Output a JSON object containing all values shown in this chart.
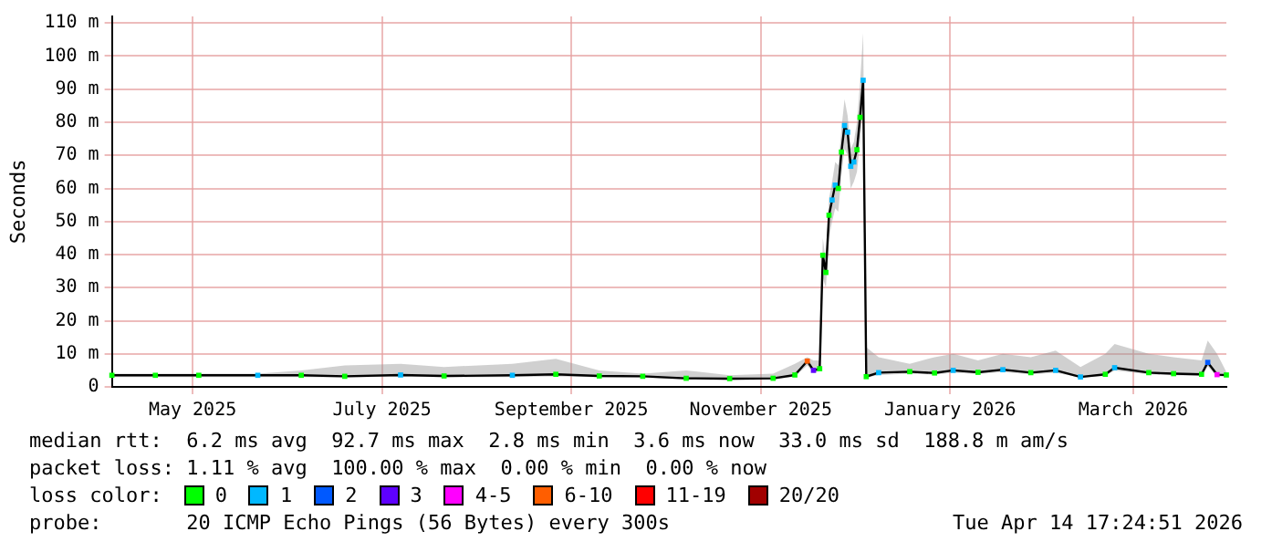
{
  "chart_data": {
    "type": "line",
    "ylabel": "Seconds",
    "x": [
      "2025-04-20",
      "2025-05-04",
      "2025-05-18",
      "2025-06-06",
      "2025-06-20",
      "2025-07-04",
      "2025-07-22",
      "2025-08-05",
      "2025-08-27",
      "2025-09-10",
      "2025-09-24",
      "2025-10-08",
      "2025-10-22",
      "2025-11-05",
      "2025-11-19",
      "2025-11-26",
      "2025-11-30",
      "2025-12-02",
      "2025-12-04",
      "2025-12-05",
      "2025-12-06",
      "2025-12-07",
      "2025-12-08",
      "2025-12-09",
      "2025-12-10",
      "2025-12-11",
      "2025-12-12",
      "2025-12-13",
      "2025-12-14",
      "2025-12-15",
      "2025-12-16",
      "2025-12-17",
      "2025-12-18",
      "2025-12-19",
      "2025-12-23",
      "2026-01-02",
      "2026-01-10",
      "2026-01-16",
      "2026-01-24",
      "2026-02-01",
      "2026-02-10",
      "2026-02-18",
      "2026-02-26",
      "2026-03-06",
      "2026-03-09",
      "2026-03-20",
      "2026-03-28",
      "2026-04-06",
      "2026-04-08",
      "2026-04-11",
      "2026-04-14"
    ],
    "series": [
      {
        "color": "#000000",
        "marker": "none",
        "values": [
          3.5,
          3.5,
          3.5,
          3.5,
          3.5,
          3.2,
          3.6,
          3.3,
          3.5,
          3.8,
          3.3,
          3.2,
          2.6,
          2.5,
          2.6,
          3.6,
          7.8,
          5,
          5.5,
          39.8,
          34.6,
          51.9,
          56.5,
          61,
          60,
          71,
          79,
          77,
          66.7,
          68,
          71.7,
          81.5,
          92.7,
          3.1,
          4.3,
          4.6,
          4.2,
          5,
          4.4,
          5.2,
          4.3,
          5,
          3,
          3.8,
          5.8,
          4.3,
          4,
          3.8,
          7.4,
          3.7,
          3.6
        ],
        "lower": [
          3,
          3,
          3,
          3,
          3,
          2.8,
          3.1,
          2.9,
          3,
          3.2,
          2.9,
          2.8,
          2.2,
          2.1,
          2.2,
          3.1,
          6.5,
          4.2,
          4.8,
          33,
          30,
          45,
          50,
          54,
          53,
          64,
          72,
          70,
          60,
          62,
          65,
          74,
          85,
          2.8,
          3.6,
          4,
          3.7,
          4.3,
          3.9,
          4.5,
          3.8,
          4.3,
          2.8,
          3.3,
          5,
          3.8,
          3.5,
          3.3,
          6.2,
          3.2,
          3.2
        ],
        "upper": [
          4,
          4,
          4,
          4,
          5,
          6.5,
          7,
          6,
          7,
          8.5,
          5,
          4,
          5,
          3.5,
          4,
          7,
          9,
          8,
          8,
          45,
          38,
          57,
          62,
          68,
          67,
          78,
          87,
          82,
          72,
          74,
          80,
          92,
          107,
          12,
          9,
          7,
          9,
          10,
          8,
          10,
          9,
          11,
          6,
          10,
          13,
          10,
          9,
          8,
          14,
          10,
          4.5
        ]
      },
      {
        "name": "0",
        "type": "scatter",
        "color": "#00ff00",
        "values": [
          3.5,
          3.5,
          3.5,
          null,
          3.5,
          3.2,
          null,
          3.3,
          null,
          3.8,
          3.3,
          3.2,
          2.6,
          2.5,
          2.6,
          3.6,
          null,
          null,
          5.5,
          39.8,
          34.6,
          51.9,
          null,
          null,
          60,
          71,
          null,
          null,
          null,
          null,
          71.7,
          81.5,
          null,
          3.1,
          null,
          4.6,
          4.2,
          null,
          4.4,
          null,
          4.3,
          null,
          null,
          3.8,
          null,
          4.3,
          4,
          3.8,
          null,
          null,
          3.6
        ]
      },
      {
        "name": "1",
        "type": "scatter",
        "color": "#00b8ff",
        "values": [
          null,
          null,
          null,
          3.5,
          null,
          null,
          3.6,
          null,
          3.5,
          null,
          null,
          null,
          null,
          null,
          null,
          null,
          null,
          null,
          null,
          null,
          null,
          null,
          56.5,
          61,
          null,
          null,
          79,
          77,
          66.7,
          68,
          null,
          null,
          92.7,
          null,
          4.3,
          null,
          null,
          5,
          null,
          5.2,
          null,
          5,
          3,
          null,
          5.8,
          null,
          null,
          null,
          null,
          null,
          null
        ]
      },
      {
        "name": "2",
        "type": "scatter",
        "color": "#0059ff",
        "values": [
          null,
          null,
          null,
          null,
          null,
          null,
          null,
          null,
          null,
          null,
          null,
          null,
          null,
          null,
          null,
          null,
          null,
          null,
          null,
          null,
          null,
          null,
          null,
          null,
          null,
          null,
          null,
          null,
          null,
          null,
          null,
          null,
          null,
          null,
          null,
          null,
          null,
          null,
          null,
          null,
          null,
          null,
          null,
          null,
          null,
          null,
          null,
          null,
          7.4,
          null,
          null
        ]
      },
      {
        "name": "3",
        "type": "scatter",
        "color": "#5e00ff",
        "values": [
          null,
          null,
          null,
          null,
          null,
          null,
          null,
          null,
          null,
          null,
          null,
          null,
          null,
          null,
          null,
          null,
          null,
          5,
          null,
          null,
          null,
          null,
          null,
          null,
          null,
          null,
          null,
          null,
          null,
          null,
          null,
          null,
          null,
          null,
          null,
          null,
          null,
          null,
          null,
          null,
          null,
          null,
          null,
          null,
          null,
          null,
          null,
          null,
          null,
          null,
          null
        ]
      },
      {
        "name": "4-5",
        "type": "scatter",
        "color": "#ff00ff",
        "values": [
          null,
          null,
          null,
          null,
          null,
          null,
          null,
          null,
          null,
          null,
          null,
          null,
          null,
          null,
          null,
          null,
          null,
          null,
          null,
          null,
          null,
          null,
          null,
          null,
          null,
          null,
          null,
          null,
          null,
          null,
          null,
          null,
          null,
          null,
          null,
          null,
          null,
          null,
          null,
          null,
          null,
          null,
          null,
          null,
          null,
          null,
          null,
          null,
          null,
          3.7,
          null
        ]
      },
      {
        "name": "6-10",
        "type": "scatter",
        "color": "#ff5e00",
        "values": [
          null,
          null,
          null,
          null,
          null,
          null,
          null,
          null,
          null,
          null,
          null,
          null,
          null,
          null,
          null,
          null,
          7.8,
          null,
          null,
          null,
          null,
          null,
          null,
          null,
          null,
          null,
          null,
          null,
          null,
          null,
          null,
          null,
          null,
          null,
          null,
          null,
          null,
          null,
          null,
          null,
          null,
          null,
          null,
          null,
          null,
          null,
          null,
          null,
          null,
          null,
          null
        ]
      },
      {
        "name": "11-19",
        "type": "scatter",
        "color": "#ff0000",
        "values": [
          null,
          null,
          null,
          null,
          null,
          null,
          null,
          null,
          null,
          null,
          null,
          null,
          null,
          null,
          null,
          null,
          null,
          null,
          null,
          null,
          null,
          null,
          null,
          null,
          null,
          null,
          null,
          null,
          null,
          null,
          null,
          null,
          null,
          null,
          null,
          null,
          null,
          null,
          null,
          null,
          null,
          null,
          null,
          null,
          null,
          null,
          null,
          null,
          null,
          null,
          null
        ]
      },
      {
        "name": "20/20",
        "type": "scatter",
        "color": "#a10000",
        "values": [
          null,
          null,
          null,
          null,
          null,
          null,
          null,
          null,
          null,
          null,
          null,
          null,
          null,
          null,
          null,
          null,
          null,
          null,
          null,
          null,
          null,
          null,
          null,
          null,
          null,
          null,
          null,
          null,
          null,
          null,
          null,
          null,
          null,
          null,
          null,
          null,
          null,
          null,
          null,
          null,
          null,
          null,
          null,
          null,
          null,
          null,
          null,
          null,
          null,
          null,
          null
        ]
      }
    ],
    "xlim": [
      "2025-04-20",
      "2026-04-14"
    ],
    "xticks": [
      {
        "value": "2025-05-16",
        "label": "May 2025"
      },
      {
        "value": "2025-07-16",
        "label": "July 2025"
      },
      {
        "value": "2025-09-15",
        "label": "September 2025"
      },
      {
        "value": "2025-11-15",
        "label": "November 2025"
      },
      {
        "value": "2026-01-15",
        "label": "January 2026"
      },
      {
        "value": "2026-03-15",
        "label": "March 2026"
      }
    ],
    "ylim": [
      0,
      112
    ],
    "yticks": [
      0,
      {
        "value": 10,
        "label": "10 m"
      },
      {
        "value": 20,
        "label": "20 m"
      },
      {
        "value": 30,
        "label": "30 m"
      },
      {
        "value": 40,
        "label": "40 m"
      },
      {
        "value": 50,
        "label": "50 m"
      },
      {
        "value": 60,
        "label": "60 m"
      },
      {
        "value": 70,
        "label": "70 m"
      },
      {
        "value": 80,
        "label": "80 m"
      },
      {
        "value": 90,
        "label": "90 m"
      },
      {
        "value": 100,
        "label": "100 m"
      },
      {
        "value": 110,
        "label": "110 m"
      }
    ],
    "grid": true,
    "legend": "bottom",
    "legend_title": "loss color:",
    "marker": "square",
    "line_style": "solid",
    "annotations": [
      "median rtt:  6.2 ms avg  92.7 ms max  2.8 ms min  3.6 ms now  33.0 ms sd  188.8 m am/s",
      "packet loss: 1.11 % avg  100.00 % max  0.00 % min  0.00 % now",
      "probe:       20 ICMP Echo Pings (56 Bytes) every 300s",
      "Tue Apr 14 17:24:51 2026"
    ]
  }
}
